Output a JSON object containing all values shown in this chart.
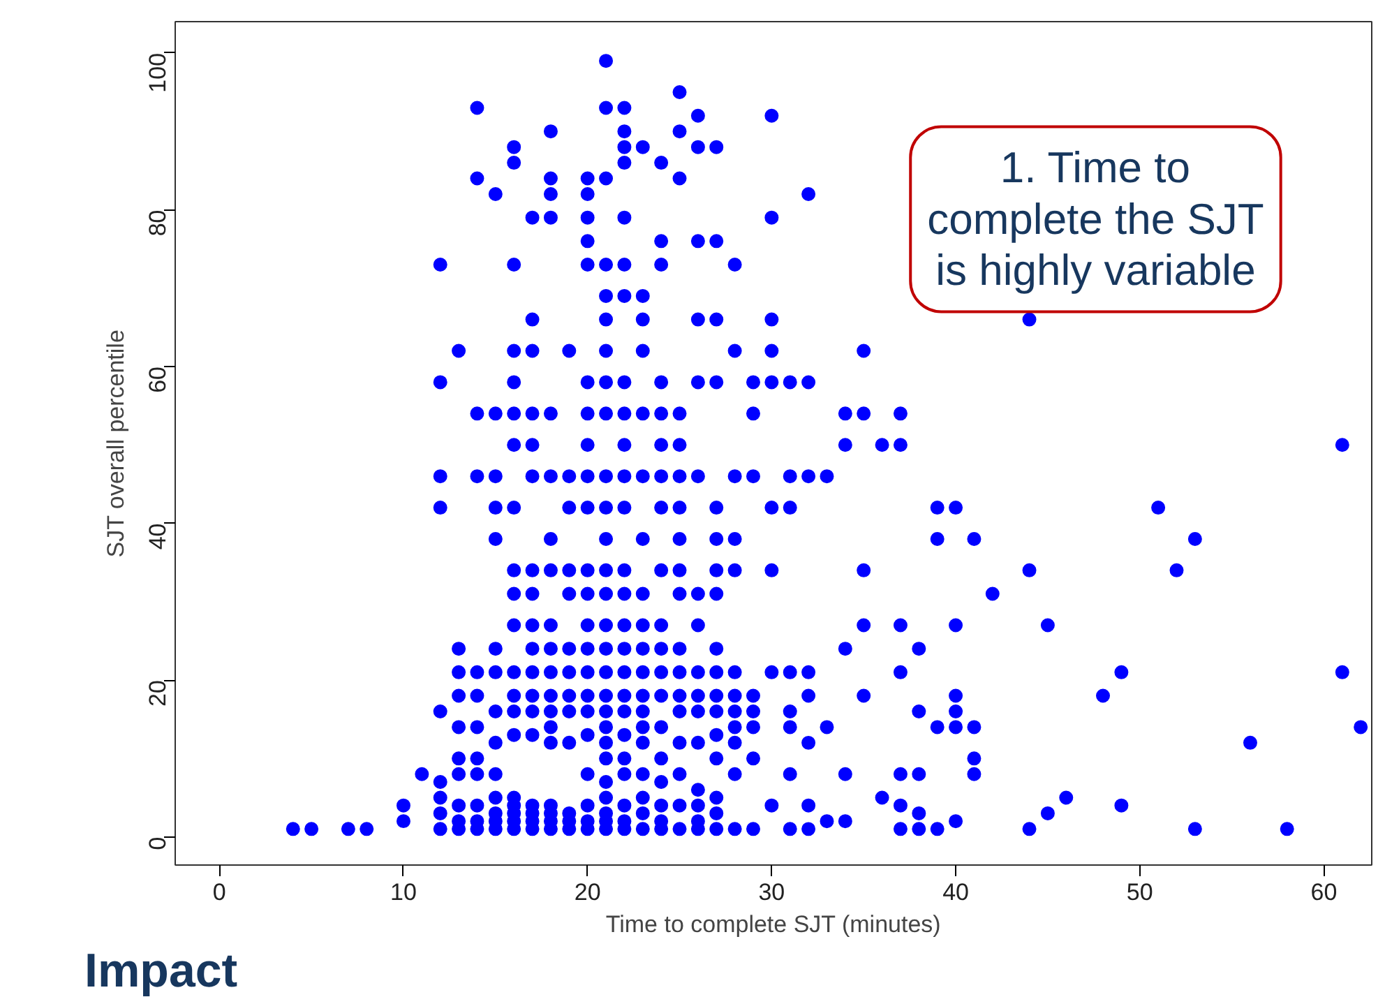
{
  "chart_data": {
    "type": "scatter",
    "xlabel": "Time to complete SJT (minutes)",
    "ylabel": "SJT overall percentile",
    "annotations": [
      "1. Time to\ncomplete the SJT\nis highly variable",
      "Impact"
    ],
    "xlim": [
      -2.4,
      62.6
    ],
    "ylim": [
      -3.6,
      104
    ],
    "xticks": [
      0,
      10,
      20,
      30,
      40,
      50,
      60
    ],
    "yticks": [
      0,
      20,
      40,
      60,
      80,
      100
    ],
    "marker": "circle",
    "grid": false,
    "series": [
      {
        "color": "#0000ff",
        "x": [
          4,
          5,
          7,
          8,
          10,
          10,
          11,
          12,
          12,
          12,
          12,
          12,
          12,
          12,
          12,
          12,
          13,
          13,
          13,
          13,
          13,
          13,
          13,
          13,
          13,
          13,
          14,
          14,
          14,
          14,
          14,
          14,
          14,
          14,
          14,
          14,
          14,
          14,
          15,
          15,
          15,
          15,
          15,
          15,
          15,
          15,
          15,
          15,
          15,
          15,
          15,
          15,
          16,
          16,
          16,
          16,
          16,
          16,
          16,
          16,
          16,
          16,
          16,
          16,
          16,
          16,
          16,
          16,
          16,
          16,
          16,
          16,
          17,
          17,
          17,
          17,
          17,
          17,
          17,
          17,
          17,
          17,
          17,
          17,
          17,
          17,
          17,
          17,
          17,
          17,
          18,
          18,
          18,
          18,
          18,
          18,
          18,
          18,
          18,
          18,
          18,
          18,
          18,
          18,
          18,
          18,
          18,
          18,
          18,
          19,
          19,
          19,
          19,
          19,
          19,
          19,
          19,
          19,
          19,
          19,
          19,
          19,
          20,
          20,
          20,
          20,
          20,
          20,
          20,
          20,
          20,
          20,
          20,
          20,
          20,
          20,
          20,
          20,
          20,
          20,
          20,
          20,
          20,
          20,
          21,
          21,
          21,
          21,
          21,
          21,
          21,
          21,
          21,
          21,
          21,
          21,
          21,
          21,
          21,
          21,
          21,
          21,
          21,
          21,
          21,
          21,
          21,
          21,
          21,
          21,
          21,
          22,
          22,
          22,
          22,
          22,
          22,
          22,
          22,
          22,
          22,
          22,
          22,
          22,
          22,
          22,
          22,
          22,
          22,
          22,
          22,
          22,
          22,
          22,
          22,
          22,
          23,
          23,
          23,
          23,
          23,
          23,
          23,
          23,
          23,
          23,
          23,
          23,
          23,
          23,
          23,
          23,
          23,
          23,
          23,
          24,
          24,
          24,
          24,
          24,
          24,
          24,
          24,
          24,
          24,
          24,
          24,
          24,
          24,
          24,
          24,
          24,
          24,
          24,
          25,
          25,
          25,
          25,
          25,
          25,
          25,
          25,
          25,
          25,
          25,
          25,
          25,
          25,
          25,
          25,
          25,
          25,
          26,
          26,
          26,
          26,
          26,
          26,
          26,
          26,
          26,
          26,
          26,
          26,
          26,
          26,
          26,
          26,
          27,
          27,
          27,
          27,
          27,
          27,
          27,
          27,
          27,
          27,
          27,
          27,
          27,
          27,
          27,
          27,
          27,
          28,
          28,
          28,
          28,
          28,
          28,
          28,
          28,
          28,
          28,
          28,
          28,
          29,
          29,
          29,
          29,
          29,
          29,
          29,
          29,
          30,
          30,
          30,
          30,
          30,
          30,
          30,
          30,
          30,
          31,
          31,
          31,
          31,
          31,
          31,
          31,
          31,
          32,
          32,
          32,
          32,
          32,
          32,
          32,
          32,
          33,
          33,
          33,
          34,
          34,
          34,
          34,
          34,
          35,
          35,
          35,
          35,
          35,
          36,
          36,
          37,
          37,
          37,
          37,
          37,
          37,
          37,
          38,
          38,
          38,
          38,
          38,
          39,
          39,
          39,
          39,
          40,
          40,
          40,
          40,
          40,
          40,
          41,
          41,
          41,
          41,
          42,
          44,
          44,
          44,
          45,
          45,
          46,
          48,
          49,
          49,
          51,
          52,
          53,
          53,
          56,
          58,
          61,
          61,
          62
        ],
        "values": [
          1,
          1,
          1,
          1,
          2,
          4,
          8,
          1,
          3,
          5,
          7,
          16,
          42,
          46,
          58,
          73,
          1,
          2,
          4,
          8,
          10,
          14,
          18,
          21,
          24,
          62,
          1,
          2,
          4,
          8,
          10,
          14,
          18,
          21,
          46,
          54,
          84,
          93,
          1,
          2,
          3,
          5,
          8,
          12,
          16,
          21,
          24,
          38,
          42,
          46,
          54,
          82,
          1,
          2,
          3,
          4,
          5,
          13,
          16,
          18,
          21,
          27,
          31,
          34,
          42,
          50,
          54,
          58,
          62,
          73,
          86,
          88,
          1,
          2,
          3,
          4,
          13,
          16,
          18,
          21,
          24,
          27,
          31,
          34,
          46,
          50,
          54,
          62,
          66,
          79,
          1,
          2,
          3,
          4,
          12,
          14,
          16,
          18,
          21,
          24,
          27,
          34,
          38,
          46,
          54,
          79,
          82,
          84,
          90,
          1,
          2,
          3,
          12,
          16,
          18,
          21,
          24,
          31,
          34,
          42,
          46,
          62,
          1,
          2,
          4,
          8,
          13,
          16,
          18,
          21,
          24,
          27,
          31,
          34,
          42,
          46,
          50,
          54,
          58,
          73,
          76,
          79,
          82,
          84,
          1,
          2,
          3,
          5,
          7,
          10,
          12,
          14,
          16,
          18,
          21,
          24,
          27,
          31,
          34,
          38,
          42,
          46,
          54,
          58,
          62,
          66,
          69,
          73,
          84,
          93,
          99,
          1,
          2,
          4,
          8,
          10,
          13,
          16,
          18,
          21,
          24,
          27,
          31,
          34,
          42,
          46,
          50,
          54,
          58,
          69,
          73,
          79,
          86,
          88,
          90,
          93,
          1,
          3,
          5,
          8,
          12,
          14,
          16,
          18,
          21,
          24,
          27,
          31,
          38,
          46,
          54,
          62,
          66,
          69,
          88,
          1,
          2,
          4,
          7,
          10,
          14,
          18,
          21,
          24,
          27,
          34,
          42,
          46,
          50,
          54,
          58,
          73,
          76,
          86,
          1,
          4,
          8,
          12,
          16,
          18,
          21,
          24,
          31,
          34,
          38,
          42,
          46,
          50,
          54,
          84,
          90,
          95,
          1,
          2,
          4,
          6,
          12,
          16,
          18,
          21,
          27,
          31,
          46,
          58,
          66,
          76,
          88,
          92,
          1,
          3,
          5,
          10,
          13,
          16,
          18,
          21,
          24,
          31,
          34,
          38,
          42,
          58,
          66,
          76,
          88,
          1,
          8,
          12,
          14,
          16,
          18,
          21,
          34,
          38,
          46,
          62,
          73,
          1,
          10,
          14,
          16,
          18,
          46,
          54,
          58,
          4,
          21,
          34,
          42,
          58,
          62,
          66,
          79,
          92,
          1,
          8,
          14,
          16,
          21,
          42,
          46,
          58,
          1,
          4,
          12,
          18,
          21,
          46,
          58,
          82,
          2,
          14,
          46,
          2,
          8,
          24,
          50,
          54,
          18,
          27,
          34,
          54,
          62,
          5,
          50,
          1,
          4,
          8,
          21,
          27,
          50,
          54,
          1,
          3,
          8,
          16,
          24,
          1,
          14,
          38,
          42,
          2,
          14,
          16,
          18,
          27,
          42,
          8,
          10,
          14,
          38,
          31,
          1,
          34,
          66,
          3,
          27,
          5,
          18,
          4,
          21,
          42,
          34,
          1,
          38,
          12,
          1,
          21,
          50,
          14
        ]
      }
    ]
  }
}
